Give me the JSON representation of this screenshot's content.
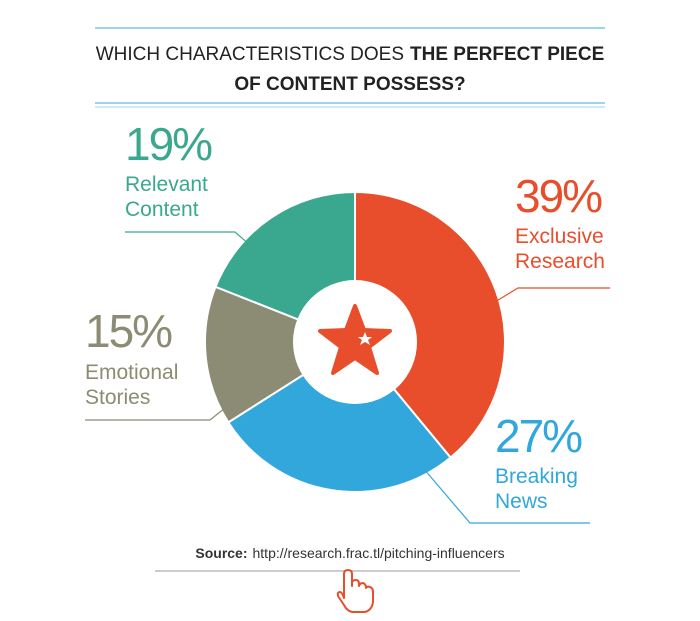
{
  "chart_data": {
    "type": "donut",
    "title": [
      "WHICH CHARACTERISTICS DOES",
      "THE PERFECT PIECE",
      "OF CONTENT POSSESS?"
    ],
    "categories": [
      "Exclusive Research",
      "Breaking News",
      "Emotional Stories",
      "Relevant Content"
    ],
    "values": [
      39,
      27,
      15,
      19
    ],
    "value_labels": [
      "39%",
      "27%",
      "15%",
      "19%"
    ],
    "colors": [
      "#e84e2c",
      "#31a7dc",
      "#8c8b74",
      "#3aa88e"
    ],
    "source_label": "Source:",
    "source_url": "http://research.frac.tl/pitching-influencers"
  }
}
